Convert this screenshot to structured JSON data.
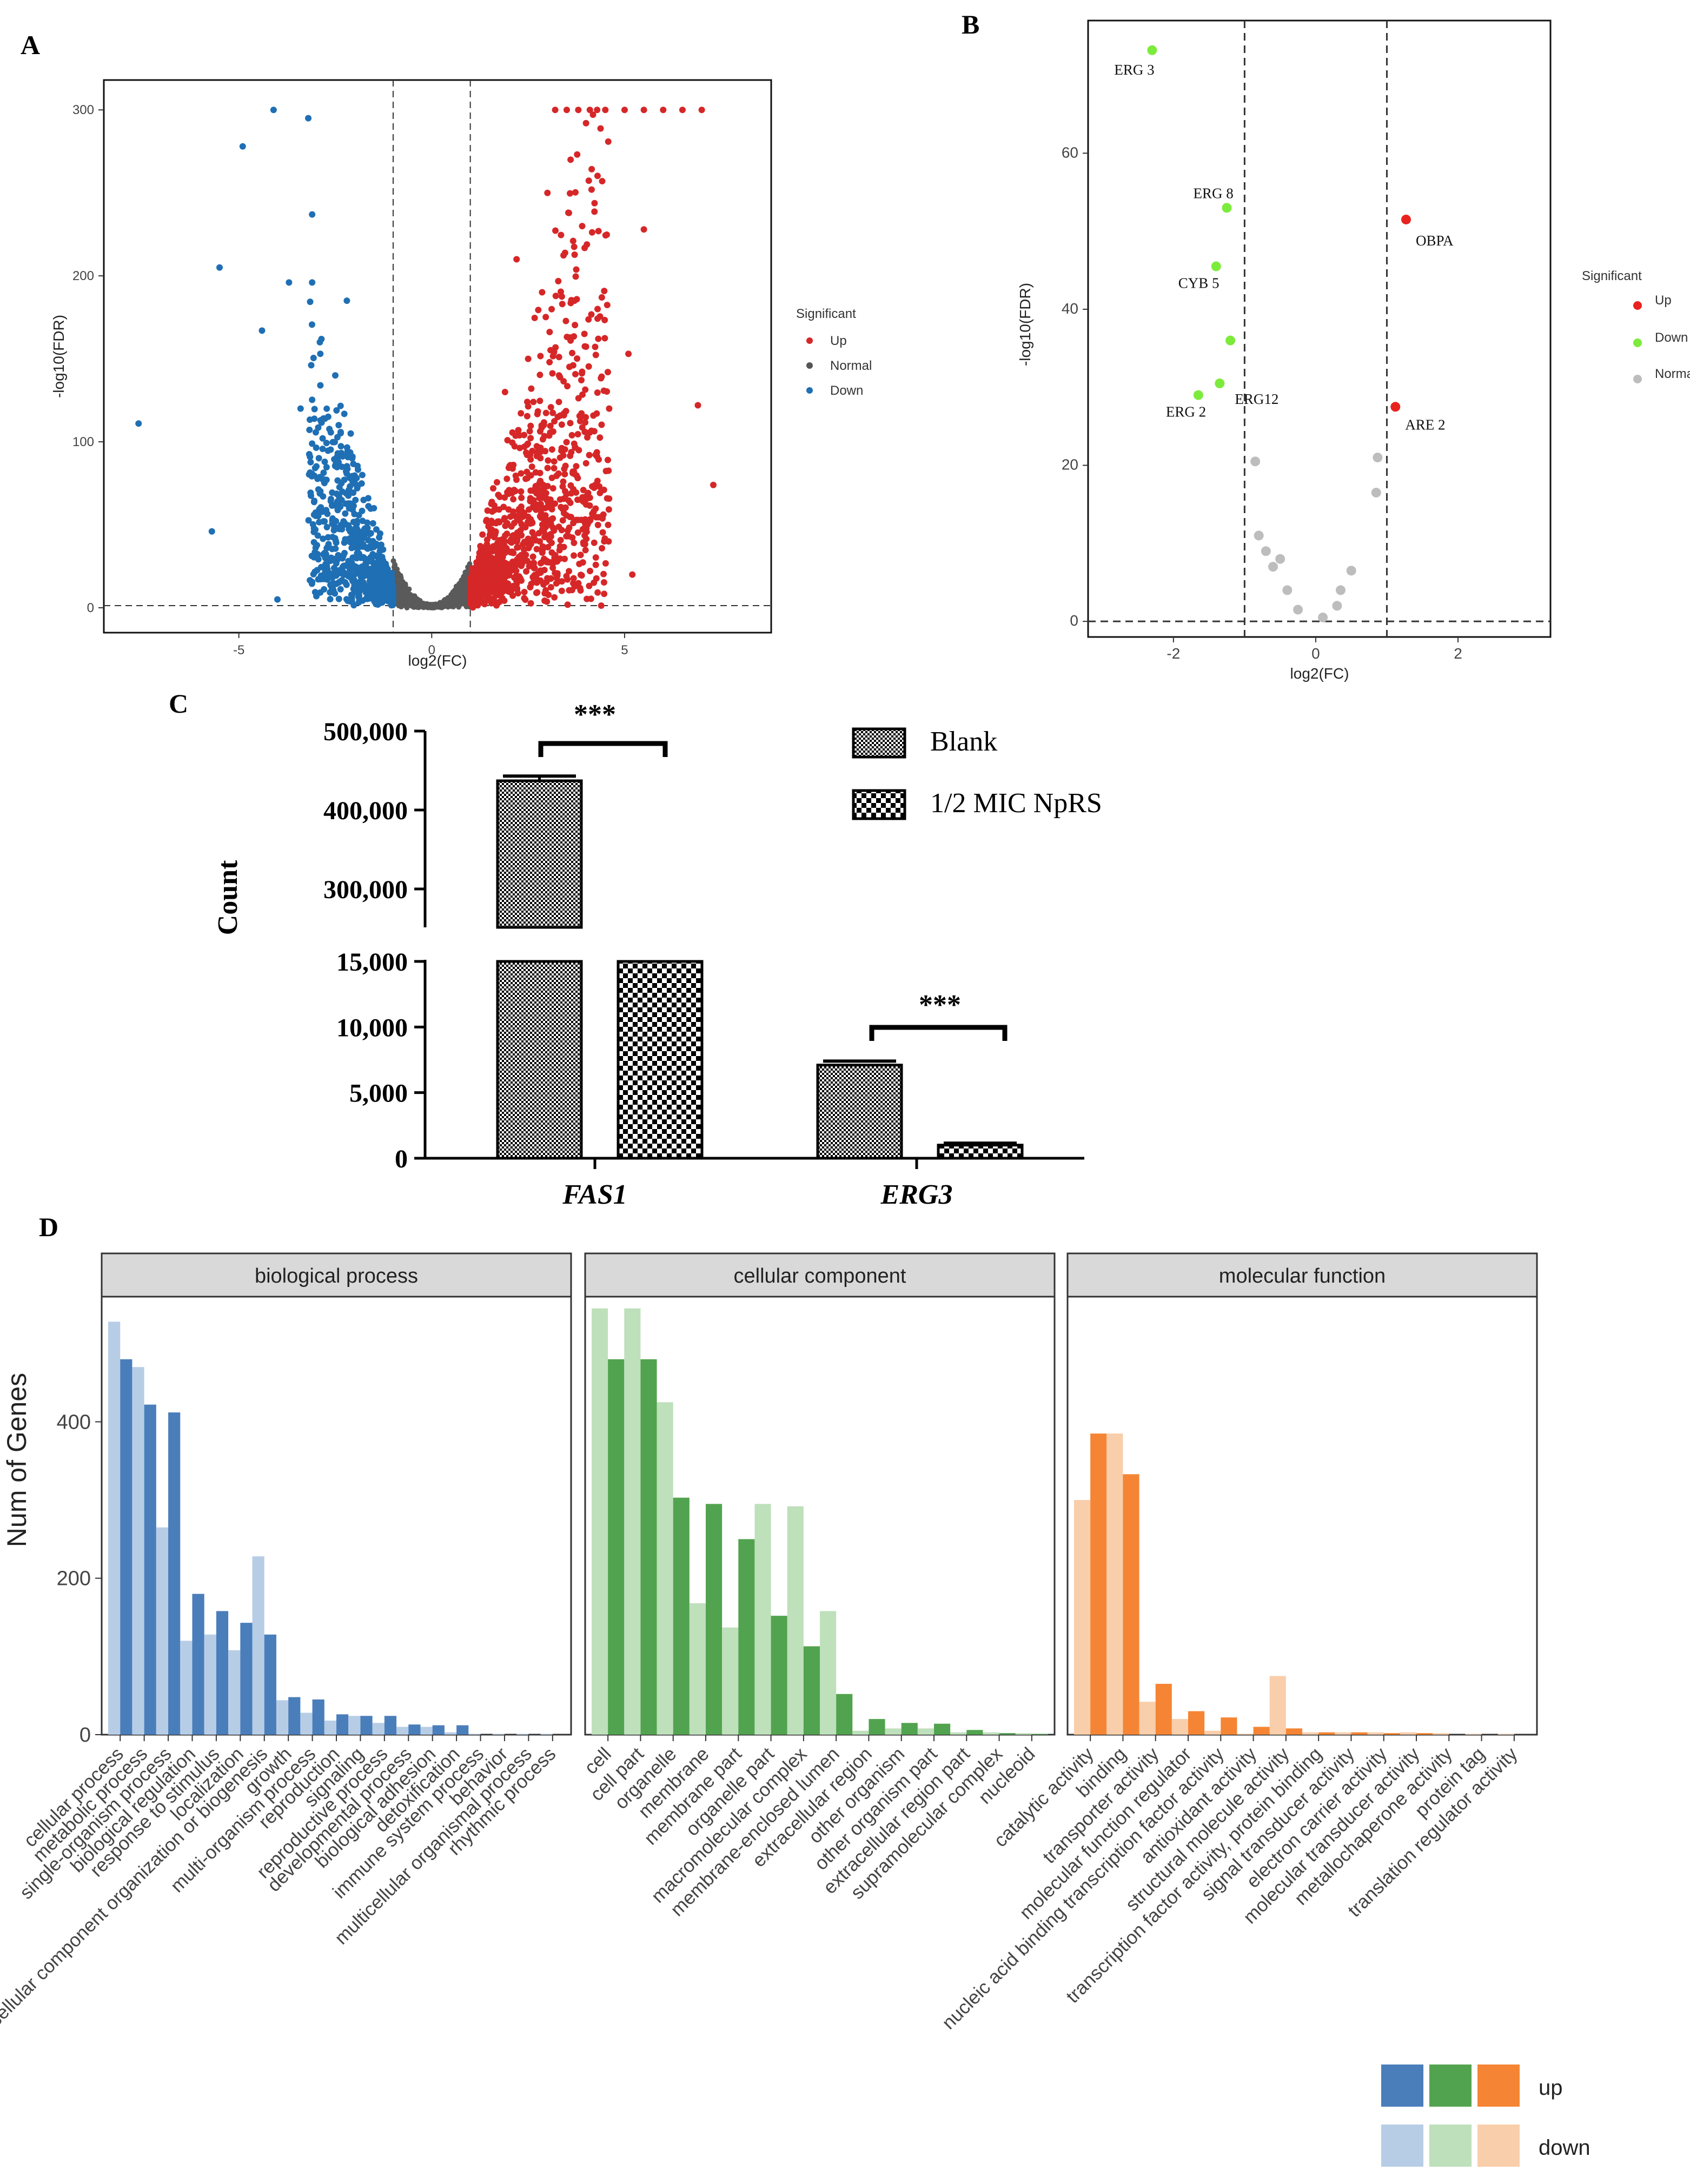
{
  "panels": {
    "A": {
      "letter": "A",
      "chart_data": {
        "type": "scatter",
        "title": "",
        "xlabel": "log2(FC)",
        "ylabel": "-log10(FDR)",
        "xlim": [
          -8.5,
          8.8
        ],
        "ylim": [
          -15,
          318
        ],
        "xticks": [
          "-5",
          "0",
          "5"
        ],
        "yticks": [
          "0",
          "100",
          "200",
          "300"
        ],
        "thresholds": {
          "x": [
            -1,
            1
          ],
          "y": 1.3
        },
        "legend_title": "Significant",
        "legend": [
          "Up",
          "Normal",
          "Down"
        ],
        "series": [
          {
            "name": "Up",
            "color": "#D62728",
            "points": [
              [
                3.2,
                300
              ],
              [
                3.5,
                300
              ],
              [
                3.8,
                300
              ],
              [
                4.1,
                300
              ],
              [
                4.5,
                300
              ],
              [
                5.0,
                300
              ],
              [
                5.5,
                300
              ],
              [
                6.0,
                300
              ],
              [
                6.5,
                300
              ],
              [
                7.0,
                300
              ],
              [
                4.0,
                292
              ],
              [
                3.6,
                270
              ],
              [
                5.5,
                228
              ],
              [
                4.3,
                180
              ],
              [
                5.1,
                153
              ],
              [
                6.9,
                122
              ],
              [
                7.3,
                74
              ],
              [
                4.2,
                58
              ],
              [
                5.2,
                20
              ],
              [
                2.8,
                40
              ],
              [
                3.4,
                95
              ],
              [
                2.5,
                150
              ],
              [
                2.2,
                210
              ],
              [
                1.9,
                130
              ],
              [
                3.0,
                250
              ],
              [
                3.9,
                230
              ],
              [
                4.6,
                120
              ],
              [
                2.6,
                85
              ],
              [
                3.7,
                185
              ],
              [
                3.3,
                140
              ],
              [
                2.9,
                110
              ]
            ]
          },
          {
            "name": "Normal",
            "color": "#555555",
            "points": [
              [
                0,
                0.5
              ],
              [
                0.3,
                1
              ],
              [
                -0.3,
                1
              ],
              [
                0.6,
                3
              ],
              [
                -0.6,
                3
              ],
              [
                0.8,
                6
              ],
              [
                -0.8,
                6
              ],
              [
                0.95,
                10
              ],
              [
                -0.95,
                10
              ]
            ]
          },
          {
            "name": "Down",
            "color": "#1F6FB4",
            "points": [
              [
                -4.1,
                300
              ],
              [
                -3.2,
                295
              ],
              [
                -4.9,
                278
              ],
              [
                -3.1,
                237
              ],
              [
                -5.5,
                205
              ],
              [
                -3.7,
                196
              ],
              [
                -3.1,
                196
              ],
              [
                -4.4,
                167
              ],
              [
                -7.6,
                111
              ],
              [
                -5.7,
                46
              ],
              [
                -4.0,
                5
              ],
              [
                -2.5,
                140
              ],
              [
                -2.1,
                105
              ],
              [
                -1.8,
                80
              ],
              [
                -2.9,
                160
              ],
              [
                -1.5,
                60
              ],
              [
                -2.2,
                185
              ],
              [
                -3.4,
                120
              ]
            ]
          }
        ]
      }
    },
    "B": {
      "letter": "B",
      "chart_data": {
        "type": "scatter",
        "title": "",
        "xlabel": "log2(FC)",
        "ylabel": "-log10(FDR)",
        "xlim": [
          -3.2,
          3.3
        ],
        "ylim": [
          -2,
          77
        ],
        "xticks": [
          "-2",
          "0",
          "2"
        ],
        "yticks": [
          "0",
          "20",
          "40",
          "60"
        ],
        "thresholds": {
          "x": [
            -1,
            1
          ],
          "y": 0
        },
        "legend_title": "Significant",
        "legend": [
          "Up",
          "Down",
          "Normal"
        ],
        "series": [
          {
            "name": "Up",
            "color": "#E8231F",
            "points": [
              [
                1.27,
                51.5
              ],
              [
                1.12,
                27.5
              ]
            ]
          },
          {
            "name": "Down",
            "color": "#7CEB3C",
            "points": [
              [
                -2.3,
                73.2
              ],
              [
                -1.25,
                53
              ],
              [
                -1.4,
                45.5
              ],
              [
                -1.2,
                36
              ],
              [
                -1.35,
                30.5
              ],
              [
                -1.65,
                29
              ]
            ]
          },
          {
            "name": "Normal",
            "color": "#BDBDBD",
            "points": [
              [
                -0.85,
                20.5
              ],
              [
                -0.8,
                11
              ],
              [
                -0.7,
                9
              ],
              [
                -0.6,
                7
              ],
              [
                -0.5,
                8
              ],
              [
                -0.4,
                4
              ],
              [
                -0.25,
                1.5
              ],
              [
                0.1,
                0.5
              ],
              [
                0.3,
                2
              ],
              [
                0.35,
                4
              ],
              [
                0.5,
                6.5
              ],
              [
                0.85,
                16.5
              ],
              [
                0.87,
                21
              ]
            ]
          }
        ],
        "labels": [
          {
            "text": "ERG 3",
            "x": -2.3,
            "y": 73.2
          },
          {
            "text": "ERG 8",
            "x": -1.25,
            "y": 53
          },
          {
            "text": "CYB 5",
            "x": -1.4,
            "y": 45.5
          },
          {
            "text": "ERG12",
            "x": -1.35,
            "y": 30.5
          },
          {
            "text": "ERG 2",
            "x": -1.65,
            "y": 29
          },
          {
            "text": "OBPA",
            "x": 1.27,
            "y": 51.5
          },
          {
            "text": "ARE 2",
            "x": 1.12,
            "y": 27.5
          }
        ]
      }
    },
    "C": {
      "letter": "C",
      "chart_data": {
        "type": "bar",
        "title": "",
        "xlabel": "",
        "ylabel": "Count",
        "categories": [
          "FAS1",
          "ERG3"
        ],
        "series": [
          {
            "name": "Blank",
            "values": [
              437000,
              7100
            ],
            "errors": [
              6000,
              300
            ]
          },
          {
            "name": "1/2 MIC NpRS",
            "values": [
              15000,
              1000
            ],
            "errors": [
              0,
              150
            ]
          }
        ],
        "axis_break": {
          "lower": [
            0,
            15000
          ],
          "upper": [
            285000,
            500000
          ]
        },
        "yticks_lower": [
          "0",
          "5,000",
          "10,000",
          "15,000"
        ],
        "yticks_upper": [
          "300,000",
          "400,000",
          "500,000"
        ],
        "significance": [
          "***",
          "***"
        ]
      }
    },
    "D": {
      "letter": "D",
      "chart_data": {
        "type": "bar",
        "title": "",
        "xlabel": "",
        "ylabel": "Num of Genes",
        "ylim": [
          0,
          560
        ],
        "yticks": [
          "0",
          "200",
          "400"
        ],
        "legend": {
          "up": "up",
          "down": "down"
        },
        "colors": {
          "biological process": {
            "up": "#4A7EBB",
            "down": "#B7CDE6"
          },
          "cellular component": {
            "up": "#52A34F",
            "down": "#BEE0BB"
          },
          "molecular function": {
            "up": "#F58534",
            "down": "#F9CEAA"
          }
        },
        "facets": [
          {
            "name": "biological process",
            "categories": [
              "cellular process",
              "metabolic process",
              "single-organism process",
              "biological regulation",
              "response to stimulus",
              "localization",
              "cellular component organization or biogenesis",
              "growth",
              "multi-organism process",
              "reproduction",
              "signaling",
              "reproductive process",
              "developmental process",
              "biological adhesion",
              "detoxification",
              "immune system process",
              "behavior",
              "multicellular organismal process",
              "rhythmic process"
            ],
            "down": [
              528,
              470,
              265,
              120,
              128,
              108,
              228,
              44,
              28,
              18,
              24,
              15,
              10,
              10,
              3,
              1,
              1,
              1,
              1
            ],
            "up": [
              480,
              422,
              412,
              180,
              158,
              143,
              128,
              48,
              45,
              26,
              24,
              24,
              13,
              12,
              12,
              0,
              0,
              0,
              0
            ]
          },
          {
            "name": "cellular component",
            "categories": [
              "cell",
              "cell part",
              "organelle",
              "membrane",
              "membrane part",
              "organelle part",
              "macromolecular complex",
              "membrane-enclosed lumen",
              "extracellular region",
              "other organism",
              "other organism part",
              "extracellular region part",
              "supramolecular complex",
              "nucleoid"
            ],
            "down": [
              545,
              545,
              425,
              168,
              137,
              295,
              292,
              158,
              5,
              8,
              8,
              3,
              3,
              2
            ],
            "up": [
              480,
              480,
              303,
              295,
              250,
              152,
              113,
              52,
              20,
              15,
              14,
              6,
              2,
              1
            ]
          },
          {
            "name": "molecular function",
            "categories": [
              "catalytic activity",
              "binding",
              "transporter activity",
              "molecular function regulator",
              "nucleic acid binding transcription factor activity",
              "antioxidant activity",
              "structural molecule activity",
              "transcription factor activity, protein binding",
              "signal transducer activity",
              "electron carrier activity",
              "molecular transducer activity",
              "metallochaperone activity",
              "protein tag",
              "translation regulator activity"
            ],
            "down": [
              300,
              385,
              42,
              20,
              5,
              1,
              75,
              3,
              3,
              3,
              3,
              2,
              1,
              1
            ],
            "up": [
              385,
              333,
              65,
              30,
              22,
              10,
              8,
              3,
              3,
              2,
              2,
              0,
              0,
              0
            ]
          }
        ]
      }
    }
  }
}
